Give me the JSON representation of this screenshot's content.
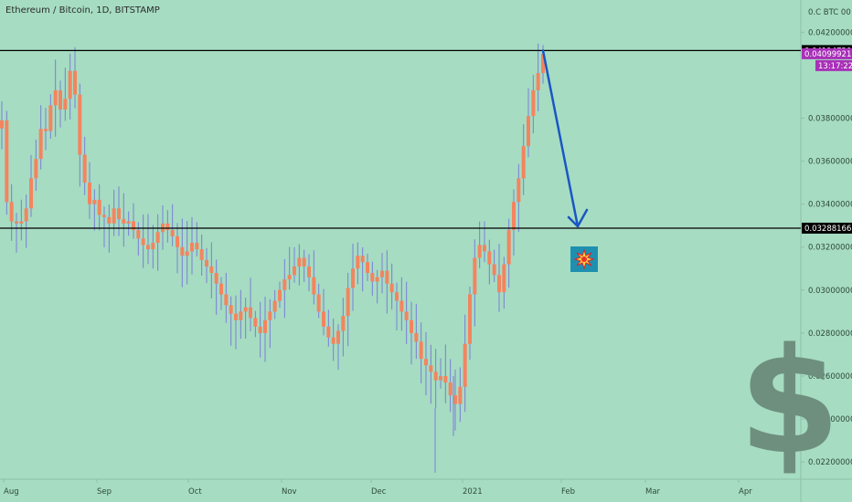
{
  "header": {
    "symbol_title": "Ethereum / Bitcoin, 1D, BITSTAMP"
  },
  "price_axis": {
    "unit_label": "0.C BTC 00",
    "ticks": [
      "0.04200000",
      "0.03800000",
      "0.03600000",
      "0.03400000",
      "0.03200000",
      "0.03000000",
      "0.02800000",
      "0.02600000",
      "0.02400000",
      "0.02200000"
    ],
    "tags": {
      "resistance": "0.04114720",
      "last_price": "0.04099921",
      "countdown": "13:17:22",
      "support": "0.03288166"
    }
  },
  "time_axis": {
    "labels": [
      "Aug",
      "Sep",
      "Oct",
      "Nov",
      "Dec",
      "2021",
      "Feb",
      "Mar",
      "Apr"
    ]
  },
  "icons": {
    "dollar": "$",
    "explosion": "explosion-icon"
  },
  "colors": {
    "background": "#a6dcc2",
    "candle_body": "#f4845f",
    "candle_wick": "#7a7fd6",
    "arrow": "#1a56c4",
    "price_tag": "#a830b8",
    "level_tag": "#000000"
  },
  "chart_data": {
    "type": "candlestick",
    "title": "Ethereum / Bitcoin, 1D, BITSTAMP",
    "ylim": [
      0.0212,
      0.0435
    ],
    "xlabels": [
      "Aug",
      "Sep",
      "Oct",
      "Nov",
      "Dec",
      "2021",
      "Feb",
      "Mar",
      "Apr"
    ],
    "horizontal_levels": [
      0.0411472,
      0.03288166
    ],
    "last_price": 0.04099921,
    "trend_points": [
      0.0379,
      0.0341,
      0.0332,
      0.0331,
      0.0332,
      0.0338,
      0.0352,
      0.0361,
      0.0375,
      0.0374,
      0.0386,
      0.0393,
      0.0384,
      0.0389,
      0.0402,
      0.0391,
      0.0363,
      0.035,
      0.034,
      0.0342,
      0.0335,
      0.0334,
      0.0331,
      0.0338,
      0.0333,
      0.0331,
      0.0332,
      0.0328,
      0.0324,
      0.0321,
      0.0319,
      0.0322,
      0.0327,
      0.0331,
      0.0328,
      0.0325,
      0.032,
      0.0316,
      0.0318,
      0.0322,
      0.0319,
      0.0314,
      0.0311,
      0.0308,
      0.0303,
      0.0298,
      0.0293,
      0.0289,
      0.0286,
      0.029,
      0.0292,
      0.0287,
      0.0283,
      0.028,
      0.0286,
      0.029,
      0.0295,
      0.03,
      0.0305,
      0.0307,
      0.0311,
      0.0315,
      0.0311,
      0.0306,
      0.0298,
      0.029,
      0.0283,
      0.0278,
      0.0275,
      0.0281,
      0.0288,
      0.0301,
      0.031,
      0.0316,
      0.0313,
      0.0308,
      0.0304,
      0.0306,
      0.0309,
      0.0303,
      0.0299,
      0.0295,
      0.029,
      0.0286,
      0.028,
      0.0276,
      0.0268,
      0.0265,
      0.0262,
      0.0258,
      0.026,
      0.0257,
      0.0251,
      0.0247,
      0.0255,
      0.0275,
      0.0298,
      0.0315,
      0.0321,
      0.0318,
      0.0312,
      0.0307,
      0.0299,
      0.0312,
      0.0328,
      0.0341,
      0.0352,
      0.0367,
      0.0381,
      0.0393,
      0.0401,
      0.041
    ]
  }
}
